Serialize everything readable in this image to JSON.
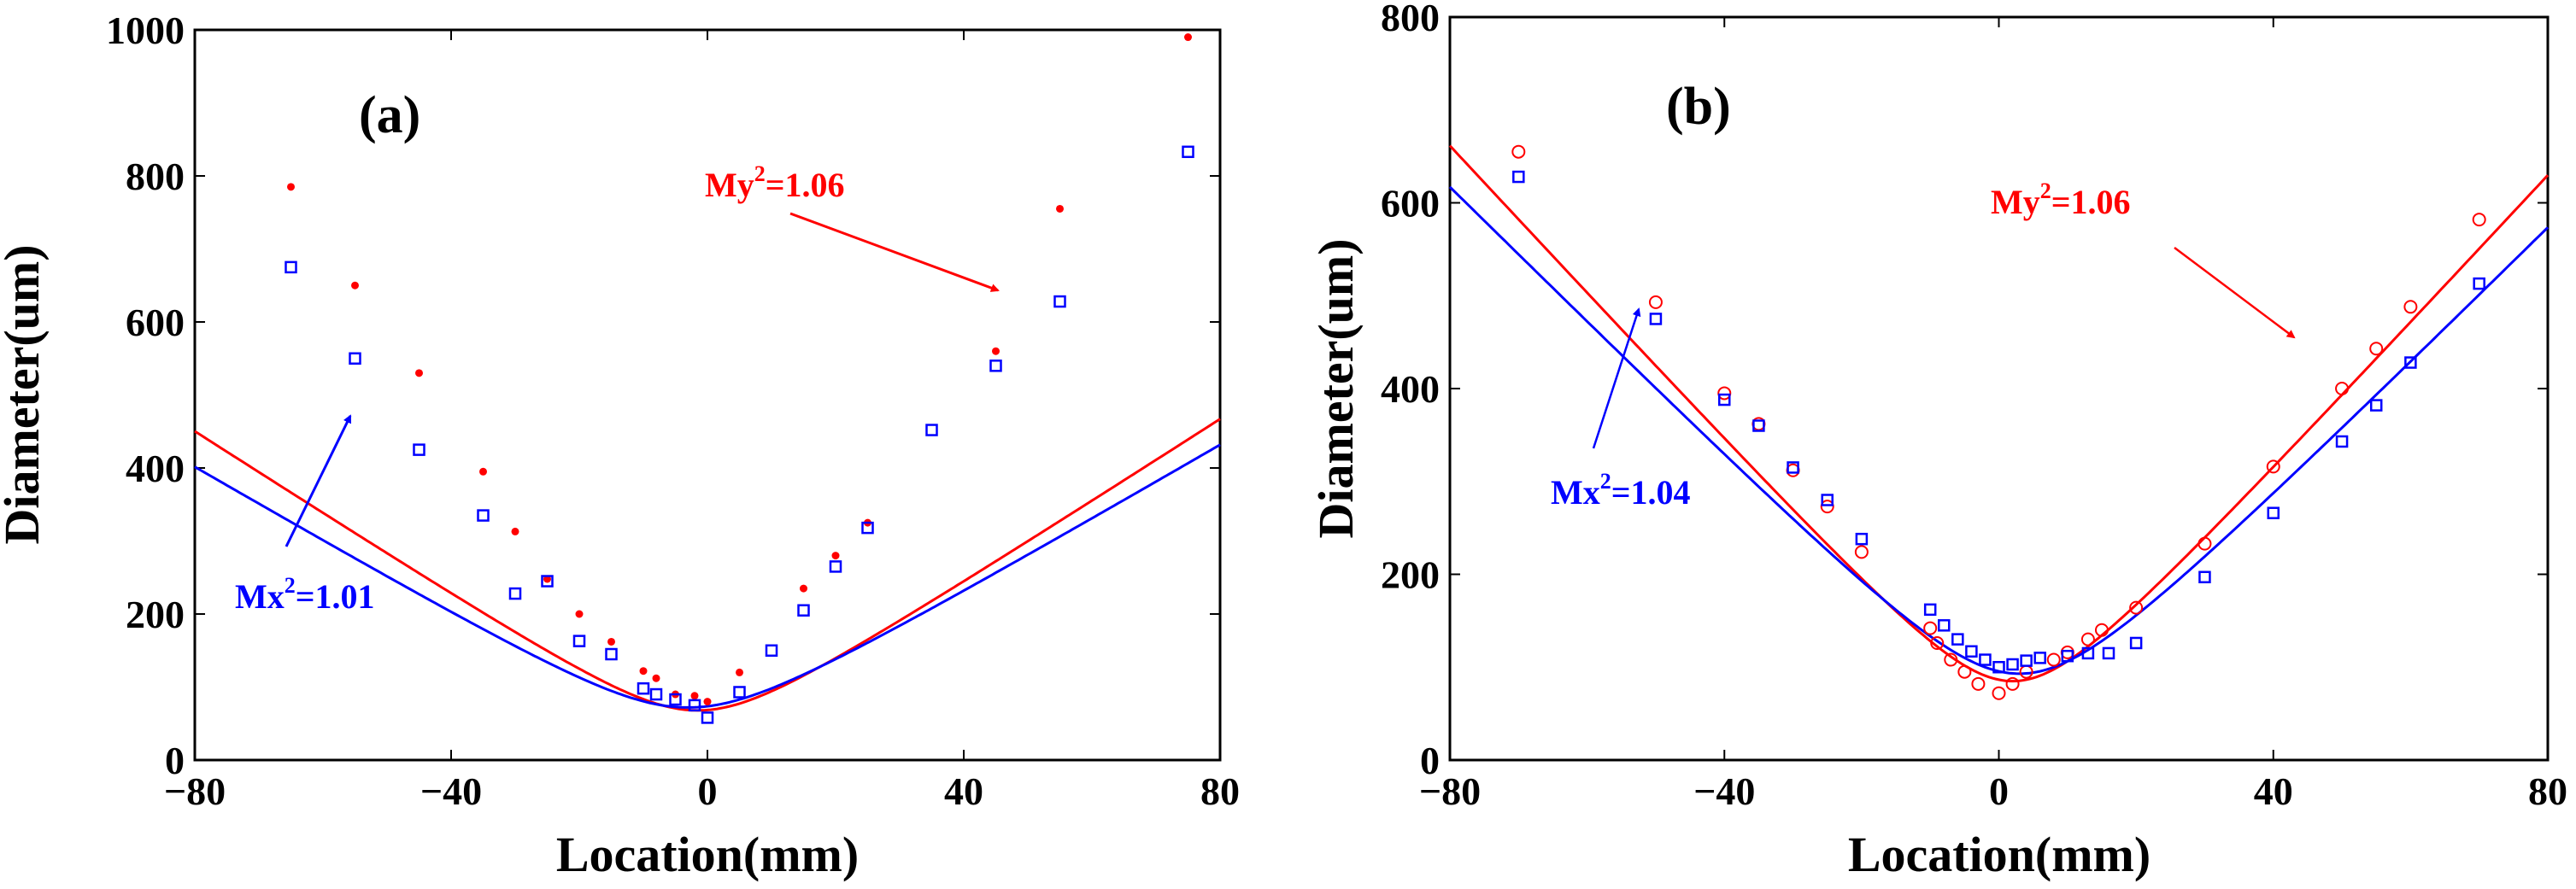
{
  "chart_data": [
    {
      "type": "scatter",
      "panel_label": "(a)",
      "xlabel": "Location(mm)",
      "ylabel": "Diameter(um)",
      "xlim": [
        -80,
        80
      ],
      "ylim": [
        0,
        1000
      ],
      "xticks": [
        -80,
        -40,
        0,
        40,
        80
      ],
      "yticks": [
        0,
        200,
        400,
        600,
        800,
        1000
      ],
      "xtick_labels": [
        "−80",
        "−40",
        "0",
        "40",
        "80"
      ],
      "ytick_labels": [
        "0",
        "200",
        "400",
        "600",
        "800",
        "1000"
      ],
      "series": [
        {
          "name": "y",
          "color": "#ff0000",
          "marker": "dot",
          "points": [
            [
              -65,
              785
            ],
            [
              -55,
              650
            ],
            [
              -45,
              530
            ],
            [
              -35,
              395
            ],
            [
              -30,
              313
            ],
            [
              -25,
              248
            ],
            [
              -20,
              200
            ],
            [
              -15,
              162
            ],
            [
              -10,
              122
            ],
            [
              -8,
              112
            ],
            [
              -5,
              90
            ],
            [
              -2,
              88
            ],
            [
              0,
              80
            ],
            [
              5,
              120
            ],
            [
              15,
              235
            ],
            [
              20,
              280
            ],
            [
              25,
              325
            ],
            [
              45,
              560
            ],
            [
              55,
              755
            ],
            [
              75,
              990
            ]
          ],
          "fit": {
            "w0": 68,
            "z0": -1.5,
            "slope": 5.67
          }
        },
        {
          "name": "x",
          "color": "#0000ff",
          "marker": "square",
          "points": [
            [
              -65,
              675
            ],
            [
              -55,
              550
            ],
            [
              -45,
              425
            ],
            [
              -35,
              335
            ],
            [
              -30,
              228
            ],
            [
              -25,
              245
            ],
            [
              -20,
              163
            ],
            [
              -15,
              145
            ],
            [
              -10,
              98
            ],
            [
              -8,
              90
            ],
            [
              -5,
              83
            ],
            [
              -2,
              75
            ],
            [
              0,
              58
            ],
            [
              5,
              93
            ],
            [
              10,
              150
            ],
            [
              15,
              205
            ],
            [
              20,
              265
            ],
            [
              25,
              318
            ],
            [
              35,
              452
            ],
            [
              45,
              540
            ],
            [
              55,
              628
            ],
            [
              75,
              833
            ]
          ],
          "fit": {
            "w0": 72,
            "z0": -3,
            "slope": 5.13
          }
        }
      ],
      "annotations": [
        {
          "base": "My",
          "sup": "2",
          "value": "=1.06",
          "color": "#ff0000"
        },
        {
          "base": "Mx",
          "sup": "2",
          "value": "=1.01",
          "color": "#0000ff"
        }
      ]
    },
    {
      "type": "scatter",
      "panel_label": "(b)",
      "xlabel": "Location(mm)",
      "ylabel": "Diameter(um)",
      "xlim": [
        -80,
        80
      ],
      "ylim": [
        0,
        800
      ],
      "xticks": [
        -80,
        -40,
        0,
        40,
        80
      ],
      "yticks": [
        0,
        200,
        400,
        600,
        800
      ],
      "xtick_labels": [
        "−80",
        "−40",
        "0",
        "40",
        "80"
      ],
      "ytick_labels": [
        "0",
        "200",
        "400",
        "600",
        "800"
      ],
      "series": [
        {
          "name": "y",
          "color": "#ff0000",
          "marker": "circle",
          "points": [
            [
              -70,
              655
            ],
            [
              -50,
              493
            ],
            [
              -40,
              395
            ],
            [
              -35,
              362
            ],
            [
              -30,
              312
            ],
            [
              -25,
              273
            ],
            [
              -20,
              224
            ],
            [
              -10,
              142
            ],
            [
              -9,
              126
            ],
            [
              -7,
              108
            ],
            [
              -5,
              95
            ],
            [
              -3,
              82
            ],
            [
              0,
              72
            ],
            [
              2,
              82
            ],
            [
              4,
              95
            ],
            [
              8,
              108
            ],
            [
              10,
              116
            ],
            [
              13,
              130
            ],
            [
              15,
              140
            ],
            [
              20,
              164
            ],
            [
              30,
              233
            ],
            [
              40,
              316
            ],
            [
              50,
              400
            ],
            [
              55,
              443
            ],
            [
              60,
              488
            ],
            [
              70,
              582
            ]
          ],
          "fit": {
            "w0": 85,
            "z0": 2,
            "slope": 8.0
          }
        },
        {
          "name": "x",
          "color": "#0000ff",
          "marker": "square",
          "points": [
            [
              -70,
              628
            ],
            [
              -50,
              475
            ],
            [
              -40,
              388
            ],
            [
              -35,
              360
            ],
            [
              -30,
              315
            ],
            [
              -25,
              280
            ],
            [
              -20,
              238
            ],
            [
              -10,
              162
            ],
            [
              -8,
              145
            ],
            [
              -6,
              130
            ],
            [
              -4,
              117
            ],
            [
              -2,
              108
            ],
            [
              0,
              100
            ],
            [
              2,
              103
            ],
            [
              4,
              107
            ],
            [
              6,
              110
            ],
            [
              10,
              112
            ],
            [
              13,
              115
            ],
            [
              16,
              115
            ],
            [
              20,
              126
            ],
            [
              30,
              197
            ],
            [
              40,
              266
            ],
            [
              50,
              343
            ],
            [
              55,
              382
            ],
            [
              60,
              428
            ],
            [
              70,
              513
            ]
          ],
          "fit": {
            "w0": 93,
            "z0": 3,
            "slope": 7.35
          }
        }
      ],
      "annotations": [
        {
          "base": "My",
          "sup": "2",
          "value": "=1.06",
          "color": "#ff0000"
        },
        {
          "base": "Mx",
          "sup": "2",
          "value": "=1.04",
          "color": "#0000ff"
        }
      ]
    }
  ]
}
